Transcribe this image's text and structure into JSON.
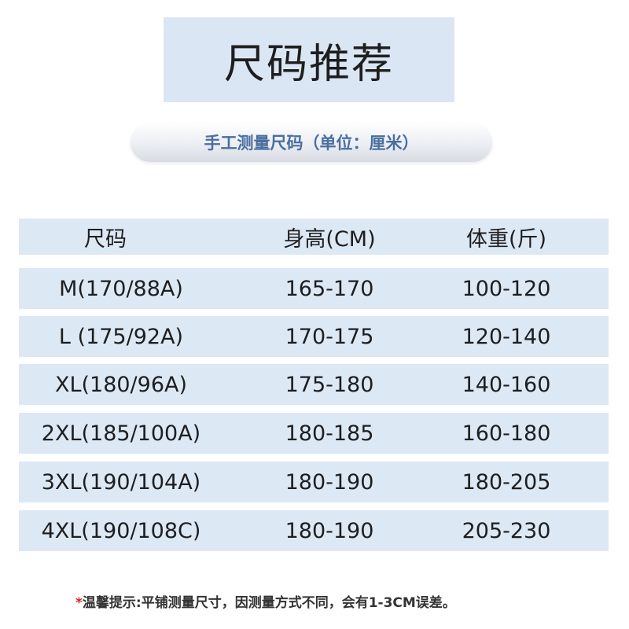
{
  "title": "尺码推荐",
  "subtitle": "手工测量尺码（单位：厘米）",
  "table": {
    "headers": [
      "尺码",
      "身高(CM)",
      "体重(斤)"
    ],
    "rows": [
      [
        "M(170/88A)",
        "165-170",
        "100-120"
      ],
      [
        "L (175/92A)",
        "170-175",
        "120-140"
      ],
      [
        "XL(180/96A)",
        "175-180",
        "140-160"
      ],
      [
        "2XL(185/100A)",
        "180-185",
        "160-180"
      ],
      [
        "3XL(190/104A)",
        "180-190",
        "180-205"
      ],
      [
        "4XL(190/108C)",
        "180-190",
        "205-230"
      ]
    ]
  },
  "note": {
    "star": "*",
    "text": "温馨提示:平铺测量尺寸，因测量方式不同，会有1-3CM误差。"
  },
  "colors": {
    "row_bg": "#dde8f5",
    "subtitle_text": "#4a6e9f",
    "star": "#e02020"
  }
}
